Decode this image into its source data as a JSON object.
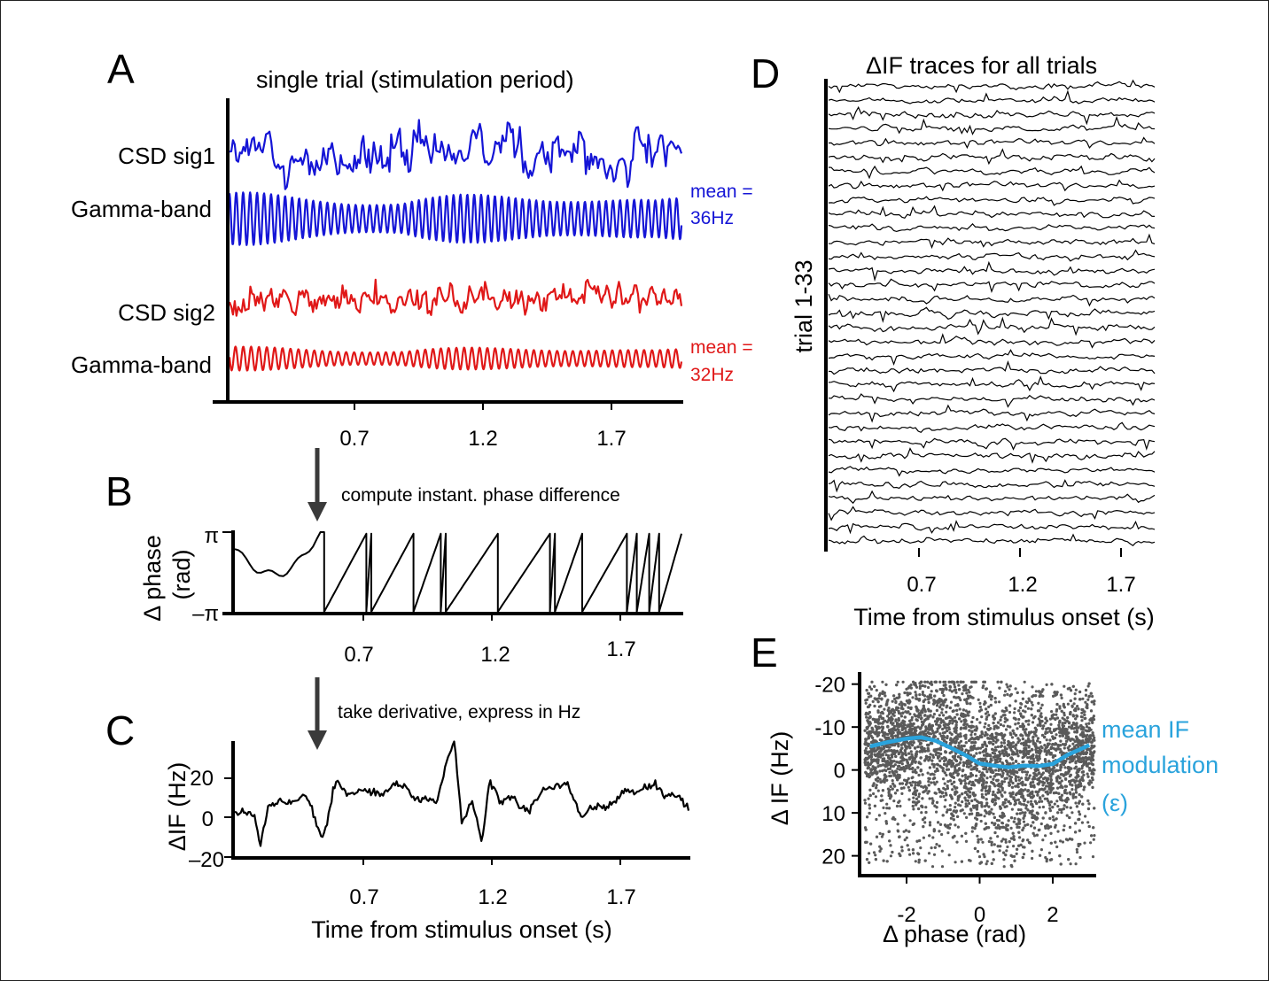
{
  "figure": {
    "panels": {
      "a": {
        "letter": "A",
        "title": "single trial (stimulation period)",
        "rows": [
          "CSD sig1",
          "Gamma-band",
          "CSD sig2",
          "Gamma-band"
        ],
        "blue_note": [
          "mean =",
          "36Hz"
        ],
        "red_note": [
          "mean =",
          "32Hz"
        ],
        "xticks": [
          "0.7",
          "1.2",
          "1.7"
        ]
      },
      "b": {
        "letter": "B",
        "step_note": "compute instant. phase difference",
        "ylabel": "Δ phase",
        "yunit": "(rad)",
        "yticks": [
          "π",
          "–π"
        ],
        "xticks": [
          "0.7",
          "1.2",
          "1.7"
        ]
      },
      "c": {
        "letter": "C",
        "step_note": "take derivative, express in Hz",
        "ylabel": "ΔIF (Hz)",
        "yticks": [
          "20",
          "0",
          "–20"
        ],
        "xticks": [
          "0.7",
          "1.2",
          "1.7"
        ],
        "xlabel": "Time from stimulus onset (s)"
      },
      "d": {
        "letter": "D",
        "title": "ΔIF traces for all trials",
        "ylabel": "trial 1-33",
        "xticks": [
          "0.7",
          "1.2",
          "1.7"
        ],
        "xlabel": "Time from stimulus onset (s)"
      },
      "e": {
        "letter": "E",
        "ylabel": "Δ IF (Hz)",
        "xlabel": "Δ phase  (rad)",
        "yticks": [
          "20",
          "10",
          "0",
          "-10",
          "-20"
        ],
        "xticks": [
          "-2",
          "0",
          "2"
        ],
        "legend": [
          "mean IF",
          "modulation",
          "(ε)"
        ]
      }
    },
    "colors": {
      "sig1": "#1515d6",
      "sig2": "#e01818",
      "trace": "#000000",
      "scatter": "#5a5a5a",
      "mean_curve": "#2aa3dc"
    }
  },
  "chart_data": [
    {
      "panel": "A",
      "type": "line",
      "title": "single trial (stimulation period)",
      "xlabel": "",
      "ylabel": "",
      "xlim": [
        0.2,
        2.0
      ],
      "xticks": [
        0.7,
        1.2,
        1.7
      ],
      "series": [
        {
          "name": "CSD sig1",
          "color": "#1515d6"
        },
        {
          "name": "Gamma-band",
          "color": "#1515d6",
          "mean_frequency_hz": 36
        },
        {
          "name": "CSD sig2",
          "color": "#e01818"
        },
        {
          "name": "Gamma-band",
          "color": "#e01818",
          "mean_frequency_hz": 32
        }
      ]
    },
    {
      "panel": "B",
      "type": "line",
      "xlabel": "",
      "ylabel": "Δ phase (rad)",
      "xlim": [
        0.2,
        2.0
      ],
      "xticks": [
        0.7,
        1.2,
        1.7
      ],
      "ylim": [
        -3.1416,
        3.1416
      ],
      "wrap_times": [
        0.56,
        0.73,
        0.75,
        0.92,
        1.03,
        1.05,
        1.26,
        1.47,
        1.49,
        1.6,
        1.78,
        1.82,
        1.87,
        1.91
      ]
    },
    {
      "panel": "C",
      "type": "line",
      "xlabel": "Time from stimulus onset (s)",
      "ylabel": "ΔIF (Hz)",
      "xlim": [
        0.2,
        2.0
      ],
      "xticks": [
        0.7,
        1.2,
        1.7
      ],
      "ylim": [
        -20,
        40
      ],
      "yticks": [
        -20,
        0,
        20
      ],
      "x": [
        0.2,
        0.28,
        0.3,
        0.33,
        0.38,
        0.48,
        0.55,
        0.6,
        0.7,
        0.8,
        0.88,
        0.93,
        1.0,
        1.07,
        1.1,
        1.14,
        1.18,
        1.21,
        1.26,
        1.3,
        1.37,
        1.45,
        1.52,
        1.58,
        1.65,
        1.72,
        1.8,
        1.87,
        1.94,
        2.0
      ],
      "values": [
        5,
        -1,
        -13,
        5,
        8,
        10,
        -10,
        16,
        12,
        14,
        17,
        7,
        10,
        38,
        -2,
        10,
        -15,
        20,
        8,
        10,
        4,
        17,
        16,
        2,
        5,
        10,
        15,
        15,
        12,
        4
      ]
    },
    {
      "panel": "D",
      "type": "line",
      "title": "ΔIF traces for all trials",
      "xlabel": "Time from stimulus onset (s)",
      "ylabel": "trial 1-33",
      "xlim": [
        0.2,
        2.0
      ],
      "xticks": [
        0.7,
        1.2,
        1.7
      ],
      "trial_count": 33
    },
    {
      "panel": "E",
      "type": "scatter",
      "xlabel": "Δ phase  (rad)",
      "ylabel": "Δ IF (Hz)",
      "xlim": [
        -3.14,
        3.14
      ],
      "ylim": [
        -24,
        22
      ],
      "xticks": [
        -2,
        0,
        2
      ],
      "yticks": [
        -20,
        -10,
        0,
        10,
        20
      ],
      "mean_curve": {
        "name": "mean IF modulation (ε)",
        "x": [
          -3.0,
          -2.5,
          -2.0,
          -1.6,
          -1.2,
          -0.8,
          -0.4,
          0.0,
          0.4,
          0.8,
          1.2,
          1.6,
          2.0,
          2.4,
          2.8,
          3.0
        ],
        "y": [
          5.5,
          6.5,
          7.3,
          7.6,
          6.8,
          5.2,
          3.5,
          1.5,
          1.0,
          0.6,
          1.0,
          0.9,
          1.4,
          3.5,
          5.0,
          5.8
        ]
      }
    }
  ]
}
